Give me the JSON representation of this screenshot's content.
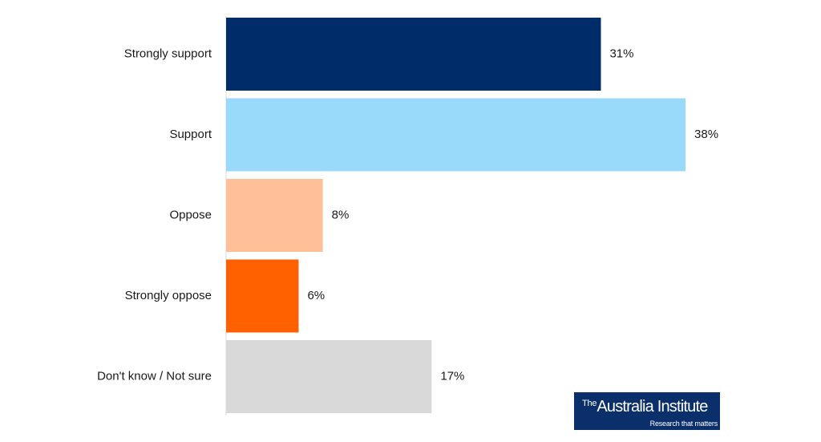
{
  "chart_data": {
    "type": "bar",
    "orientation": "horizontal",
    "categories": [
      "Strongly support",
      "Support",
      "Oppose",
      "Strongly oppose",
      "Don't know / Not sure"
    ],
    "values": [
      31,
      38,
      8,
      6,
      17
    ],
    "value_labels": [
      "31%",
      "38%",
      "8%",
      "6%",
      "17%"
    ],
    "colors": [
      "#002d69",
      "#99d9fa",
      "#ffbf99",
      "#ff6100",
      "#d9d9d9"
    ],
    "title": "",
    "xlabel": "",
    "ylabel": "",
    "xlim": [
      0,
      38
    ],
    "grid": false,
    "legend": "none"
  },
  "logo": {
    "prefix": "The",
    "name": "Australia Institute",
    "tagline": "Research that matters",
    "background": "#0a2f6b"
  }
}
